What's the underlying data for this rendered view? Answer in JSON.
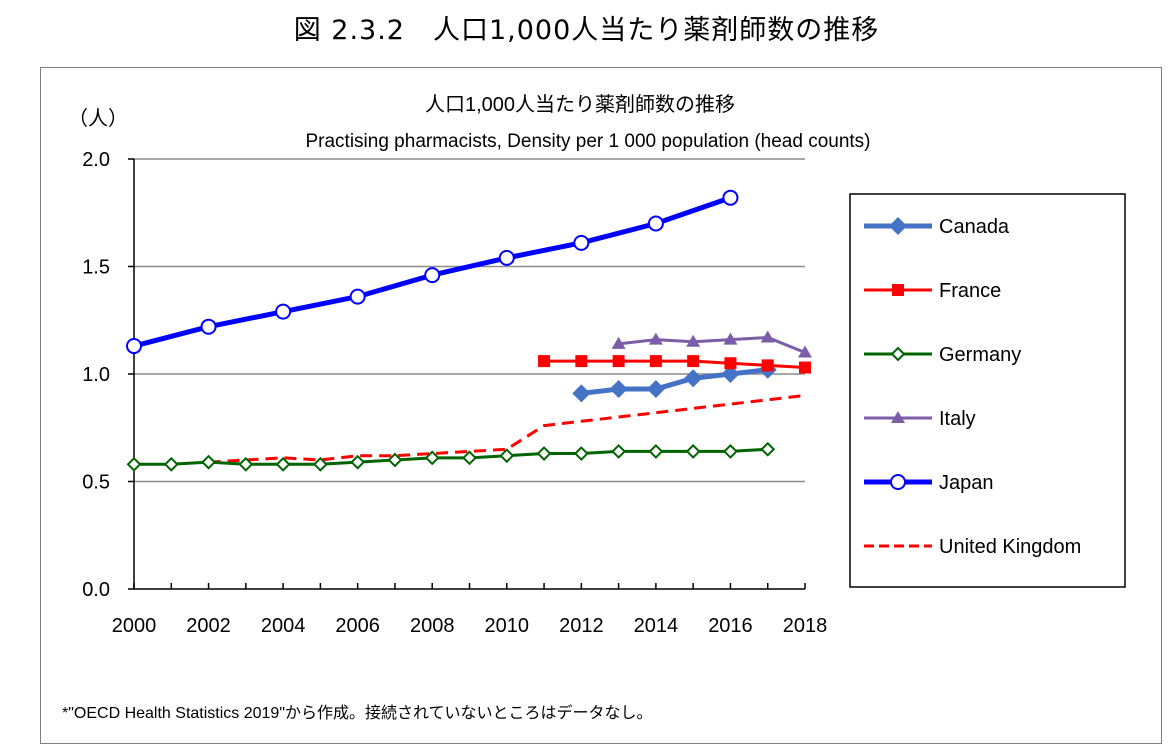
{
  "figure_title": "図 2.3.2　人口1,000人当たり薬剤師数の推移",
  "footnote": "*\"OECD Health Statistics 2019\"から作成。接続されていないところはデータなし。",
  "chart_data": {
    "type": "line",
    "title": "人口1,000人当たり薬剤師数の推移",
    "subtitle": "Practising pharmacists, Density per 1 000 population (head counts)",
    "ylabel": "（人）",
    "xlabel": "",
    "x": [
      2000,
      2001,
      2002,
      2003,
      2004,
      2005,
      2006,
      2007,
      2008,
      2009,
      2010,
      2011,
      2012,
      2013,
      2014,
      2015,
      2016,
      2017,
      2018
    ],
    "xlim": [
      2000,
      2018
    ],
    "ylim": [
      0,
      2.0
    ],
    "yticks": [
      "0.0",
      "0.5",
      "1.0",
      "1.5",
      "2.0"
    ],
    "xtick_labels": [
      "2000",
      "2002",
      "2004",
      "2006",
      "2008",
      "2010",
      "2012",
      "2014",
      "2016",
      "2018"
    ],
    "grid": true,
    "legend_position": "right",
    "series": [
      {
        "name": "Canada",
        "color": "#4472C4",
        "marker": "diamond-filled",
        "dash": false,
        "values": [
          null,
          null,
          null,
          null,
          null,
          null,
          null,
          null,
          null,
          null,
          null,
          null,
          0.91,
          0.93,
          0.93,
          0.98,
          1.0,
          1.02,
          null
        ]
      },
      {
        "name": "France",
        "color": "#FF0000",
        "marker": "square-filled",
        "dash": false,
        "values": [
          null,
          null,
          null,
          null,
          null,
          null,
          null,
          null,
          null,
          null,
          null,
          1.06,
          1.06,
          1.06,
          1.06,
          1.06,
          1.05,
          1.04,
          1.03
        ]
      },
      {
        "name": "Germany",
        "color": "#006400",
        "marker": "diamond-open",
        "dash": false,
        "values": [
          0.58,
          0.58,
          0.59,
          0.58,
          0.58,
          0.58,
          0.59,
          0.6,
          0.61,
          0.61,
          0.62,
          0.63,
          0.63,
          0.64,
          0.64,
          0.64,
          0.64,
          0.65,
          null
        ]
      },
      {
        "name": "Italy",
        "color": "#7B5EA7",
        "marker": "triangle-filled",
        "dash": false,
        "values": [
          null,
          null,
          null,
          null,
          null,
          null,
          null,
          null,
          null,
          null,
          null,
          null,
          null,
          1.14,
          1.16,
          1.15,
          1.16,
          1.17,
          1.1
        ]
      },
      {
        "name": "Japan",
        "color": "#0000FF",
        "marker": "circle-open",
        "dash": false,
        "values": [
          1.13,
          null,
          1.22,
          null,
          1.29,
          null,
          1.36,
          null,
          1.46,
          null,
          1.54,
          null,
          1.61,
          null,
          1.7,
          null,
          1.82,
          null,
          null
        ]
      },
      {
        "name": "United Kingdom",
        "color": "#FF0000",
        "marker": "none",
        "dash": true,
        "values": [
          null,
          null,
          0.59,
          0.6,
          0.61,
          0.6,
          0.62,
          0.62,
          0.63,
          0.64,
          0.65,
          0.76,
          0.78,
          0.8,
          0.82,
          0.84,
          0.86,
          0.88,
          0.9
        ]
      }
    ]
  }
}
